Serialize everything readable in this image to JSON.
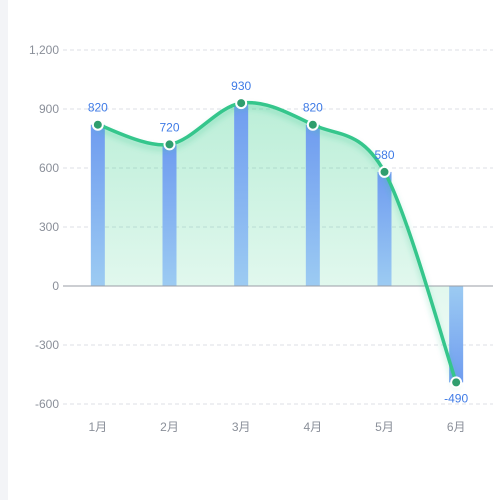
{
  "chart_data": {
    "type": "bar",
    "categories": [
      "1月",
      "2月",
      "3月",
      "4月",
      "5月",
      "6月"
    ],
    "series": [
      {
        "type": "bar",
        "values": [
          820,
          720,
          930,
          820,
          580,
          -490
        ]
      },
      {
        "type": "line",
        "smooth": true,
        "area": true,
        "values": [
          820,
          720,
          930,
          820,
          580,
          -490
        ]
      }
    ],
    "data_labels": [
      "820",
      "720",
      "930",
      "820",
      "580",
      "-490"
    ],
    "y_ticks": [
      -600,
      -300,
      0,
      300,
      600,
      900,
      1200
    ],
    "y_tick_labels": [
      "-600",
      "-300",
      "0",
      "300",
      "600",
      "900",
      "1,200"
    ],
    "ylim": [
      -600,
      1200
    ],
    "grid": true,
    "legend": "none",
    "colors": {
      "bar_top": "#6f9cf0",
      "bar_bottom": "#9ccbf2",
      "line": "#34c68c",
      "area": "#3ccf8e",
      "marker_fill": "#2f9e6e",
      "marker_stroke": "#ffffff",
      "data_label": "#3f7be6",
      "tick_label": "#8a8f99",
      "grid": "#dcdfe6",
      "axis": "#9a9ea6"
    }
  }
}
